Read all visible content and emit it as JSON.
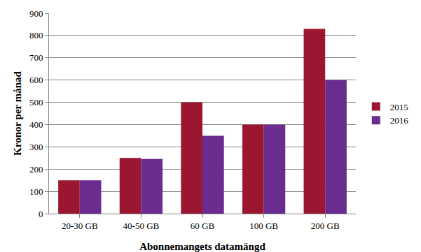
{
  "chart_data": {
    "type": "bar",
    "x_label": "Abonnemangets datamängd",
    "y_label": "Kronor per månad",
    "categories": [
      "20-30 GB",
      "40-50 GB",
      "60 GB",
      "100 GB",
      "200 GB"
    ],
    "series": [
      {
        "name": "2015",
        "color": "#9b1731",
        "values": [
          150,
          250,
          500,
          400,
          830
        ]
      },
      {
        "name": "2016",
        "color": "#6a2c8e",
        "values": [
          150,
          245,
          350,
          400,
          600
        ]
      }
    ],
    "ylim": [
      0,
      900
    ],
    "yticks": [
      0,
      100,
      200,
      300,
      400,
      500,
      600,
      700,
      800,
      900
    ],
    "grid": true,
    "legend": "right"
  }
}
